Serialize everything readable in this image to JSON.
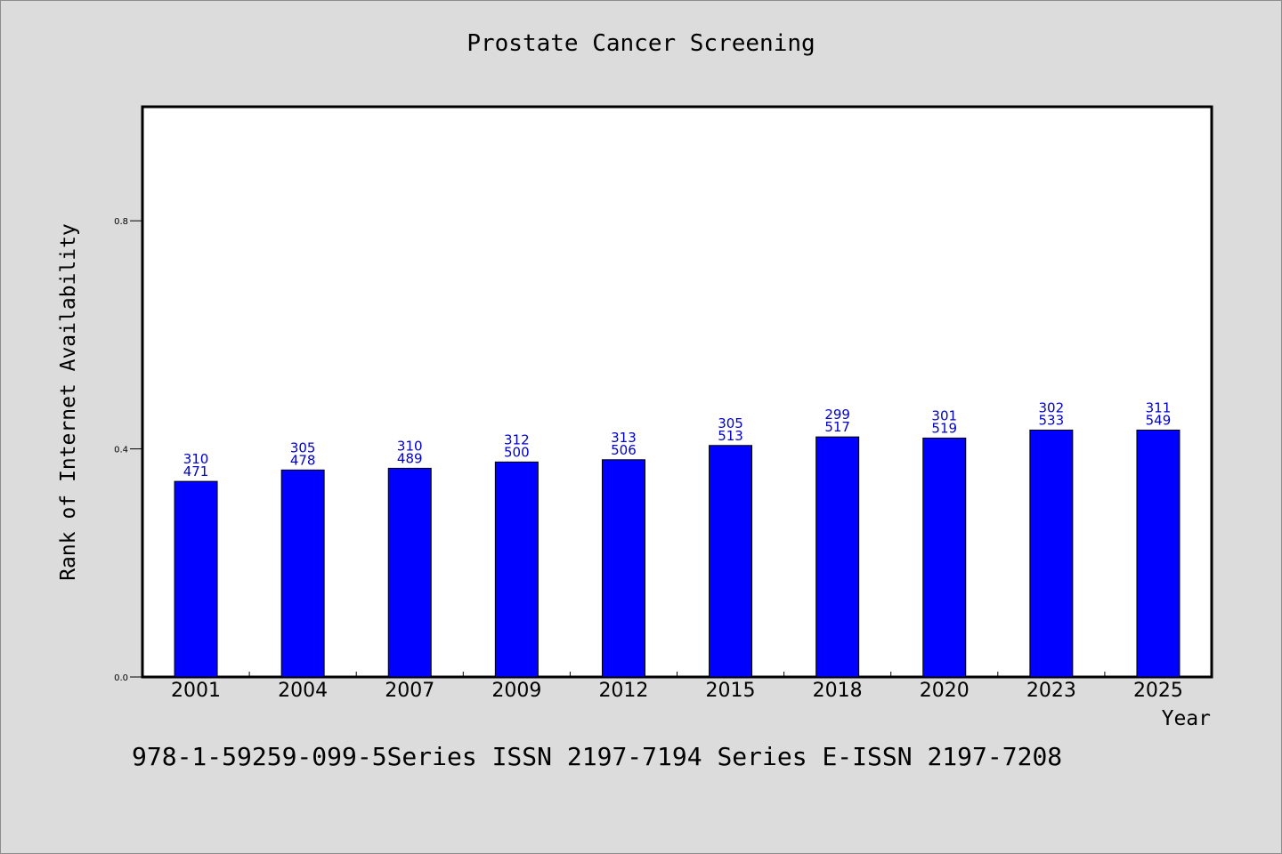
{
  "chart_data": {
    "type": "bar",
    "title": "Prostate Cancer Screening",
    "xlabel": "Year",
    "ylabel": "Rank of Internet Availability",
    "categories": [
      "2001",
      "2004",
      "2007",
      "2009",
      "2012",
      "2015",
      "2018",
      "2020",
      "2023",
      "2025"
    ],
    "values": [
      0.343,
      0.363,
      0.366,
      0.377,
      0.381,
      0.406,
      0.421,
      0.419,
      0.433,
      0.433
    ],
    "bar_labels_top": [
      "310",
      "305",
      "310",
      "312",
      "313",
      "305",
      "299",
      "301",
      "302",
      "311"
    ],
    "bar_labels_bottom": [
      "471",
      "478",
      "489",
      "500",
      "506",
      "513",
      "517",
      "519",
      "533",
      "549"
    ],
    "ylim": [
      0,
      1.0
    ],
    "yticks": [
      0.0,
      0.4,
      0.8
    ],
    "ytick_labels": [
      "0.0",
      "0.4",
      "0.8"
    ],
    "grid": false,
    "bar_color": "#0000ff",
    "label_color": "#0000cc"
  },
  "footer_note": "978-1-59259-099-5Series ISSN 2197-7194 Series E-ISSN 2197-7208",
  "colors": {
    "background": "#dcdcdc",
    "plot_background": "#ffffff"
  }
}
